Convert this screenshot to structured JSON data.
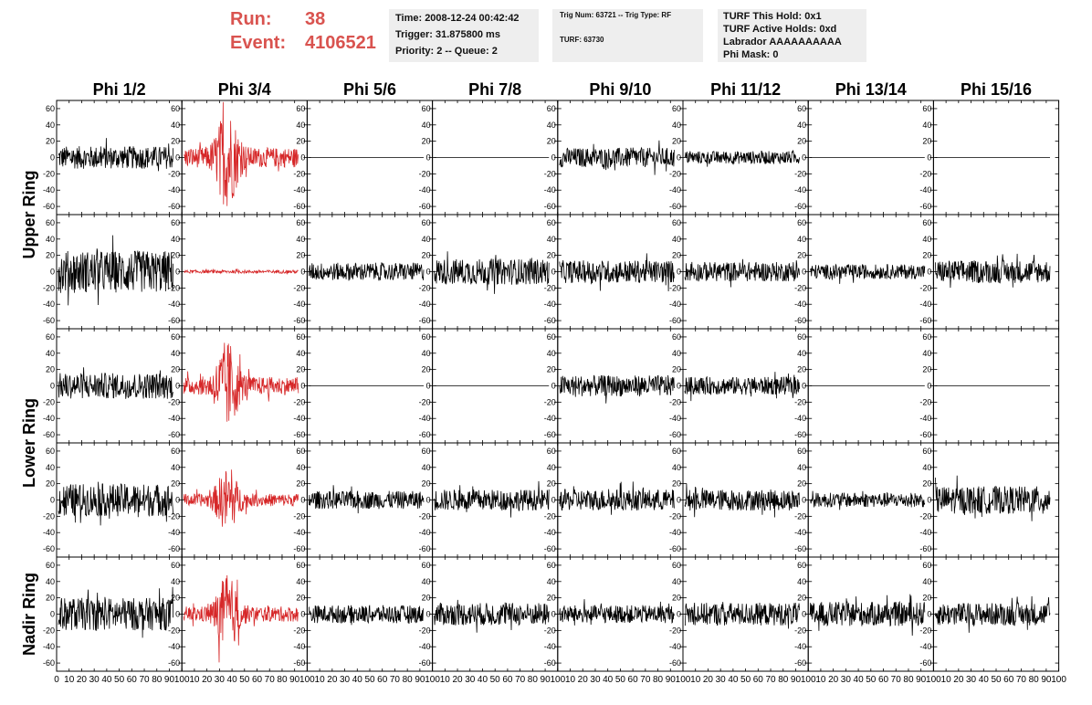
{
  "header": {
    "run_label": "Run:",
    "run_value": "38",
    "event_label": "Event:",
    "event_value": "4106521",
    "box1": [
      "Time: 2008-12-24 00:42:42",
      "Trigger: 31.875800 ms",
      "Priority: 2 -- Queue: 2"
    ],
    "box2": [
      "Trig Num: 63721 -- Trig Type: RF",
      "TURF: 63730"
    ],
    "box3": [
      "TURF This Hold: 0x1",
      "TURF Active Holds: 0xd",
      "Labrador AAAAAAAAAA",
      "Phi Mask: 0"
    ]
  },
  "chart_data": {
    "type": "line",
    "columns": [
      "Phi 1/2",
      "Phi 3/4",
      "Phi 5/6",
      "Phi 7/8",
      "Phi 9/10",
      "Phi 11/12",
      "Phi 13/14",
      "Phi 15/16"
    ],
    "rows": [
      "Upper Ring",
      "Upper Ring",
      "Lower Ring",
      "Lower Ring",
      "Nadir Ring"
    ],
    "row_labels": [
      {
        "label": "Upper Ring",
        "rows": [
          0,
          1
        ]
      },
      {
        "label": "Lower Ring",
        "rows": [
          2,
          3
        ]
      },
      {
        "label": "Nadir Ring",
        "rows": [
          4
        ]
      }
    ],
    "xlim": [
      0,
      100
    ],
    "ylim": [
      -70,
      70
    ],
    "y_ticks": [
      -60,
      -40,
      -20,
      0,
      20,
      40,
      60
    ],
    "x_ticks_bottom": [
      "0",
      "10",
      "20",
      "30",
      "40",
      "50",
      "60",
      "70",
      "80",
      "90",
      "100"
    ],
    "highlight_column": 1,
    "highlight_color": "#d62728",
    "normal_color": "#000000",
    "panels": [
      [
        {
          "amp": 14,
          "flat": false
        },
        {
          "amp": 22,
          "flat": false,
          "burst": true
        },
        {
          "amp": 0,
          "flat": true
        },
        {
          "amp": 0,
          "flat": true
        },
        {
          "amp": 12,
          "flat": false
        },
        {
          "amp": 8,
          "flat": false
        },
        {
          "amp": 0,
          "flat": true
        },
        {
          "amp": 0,
          "flat": true
        }
      ],
      [
        {
          "amp": 26,
          "flat": false
        },
        {
          "amp": 2,
          "flat": false
        },
        {
          "amp": 11,
          "flat": false
        },
        {
          "amp": 16,
          "flat": false
        },
        {
          "amp": 14,
          "flat": false
        },
        {
          "amp": 12,
          "flat": false
        },
        {
          "amp": 9,
          "flat": false
        },
        {
          "amp": 14,
          "flat": false
        }
      ],
      [
        {
          "amp": 16,
          "flat": false
        },
        {
          "amp": 20,
          "flat": false,
          "burst": true
        },
        {
          "amp": 0,
          "flat": true
        },
        {
          "amp": 0,
          "flat": true
        },
        {
          "amp": 13,
          "flat": false
        },
        {
          "amp": 11,
          "flat": false
        },
        {
          "amp": 0,
          "flat": true
        },
        {
          "amp": 0,
          "flat": true
        }
      ],
      [
        {
          "amp": 20,
          "flat": false
        },
        {
          "amp": 14,
          "flat": false,
          "burst": true
        },
        {
          "amp": 11,
          "flat": false
        },
        {
          "amp": 13,
          "flat": false
        },
        {
          "amp": 13,
          "flat": false
        },
        {
          "amp": 13,
          "flat": false
        },
        {
          "amp": 9,
          "flat": false
        },
        {
          "amp": 17,
          "flat": false
        }
      ],
      [
        {
          "amp": 20,
          "flat": false
        },
        {
          "amp": 17,
          "flat": false,
          "burst": true
        },
        {
          "amp": 11,
          "flat": false
        },
        {
          "amp": 14,
          "flat": false
        },
        {
          "amp": 11,
          "flat": false
        },
        {
          "amp": 14,
          "flat": false
        },
        {
          "amp": 15,
          "flat": false
        },
        {
          "amp": 14,
          "flat": false
        }
      ]
    ]
  }
}
